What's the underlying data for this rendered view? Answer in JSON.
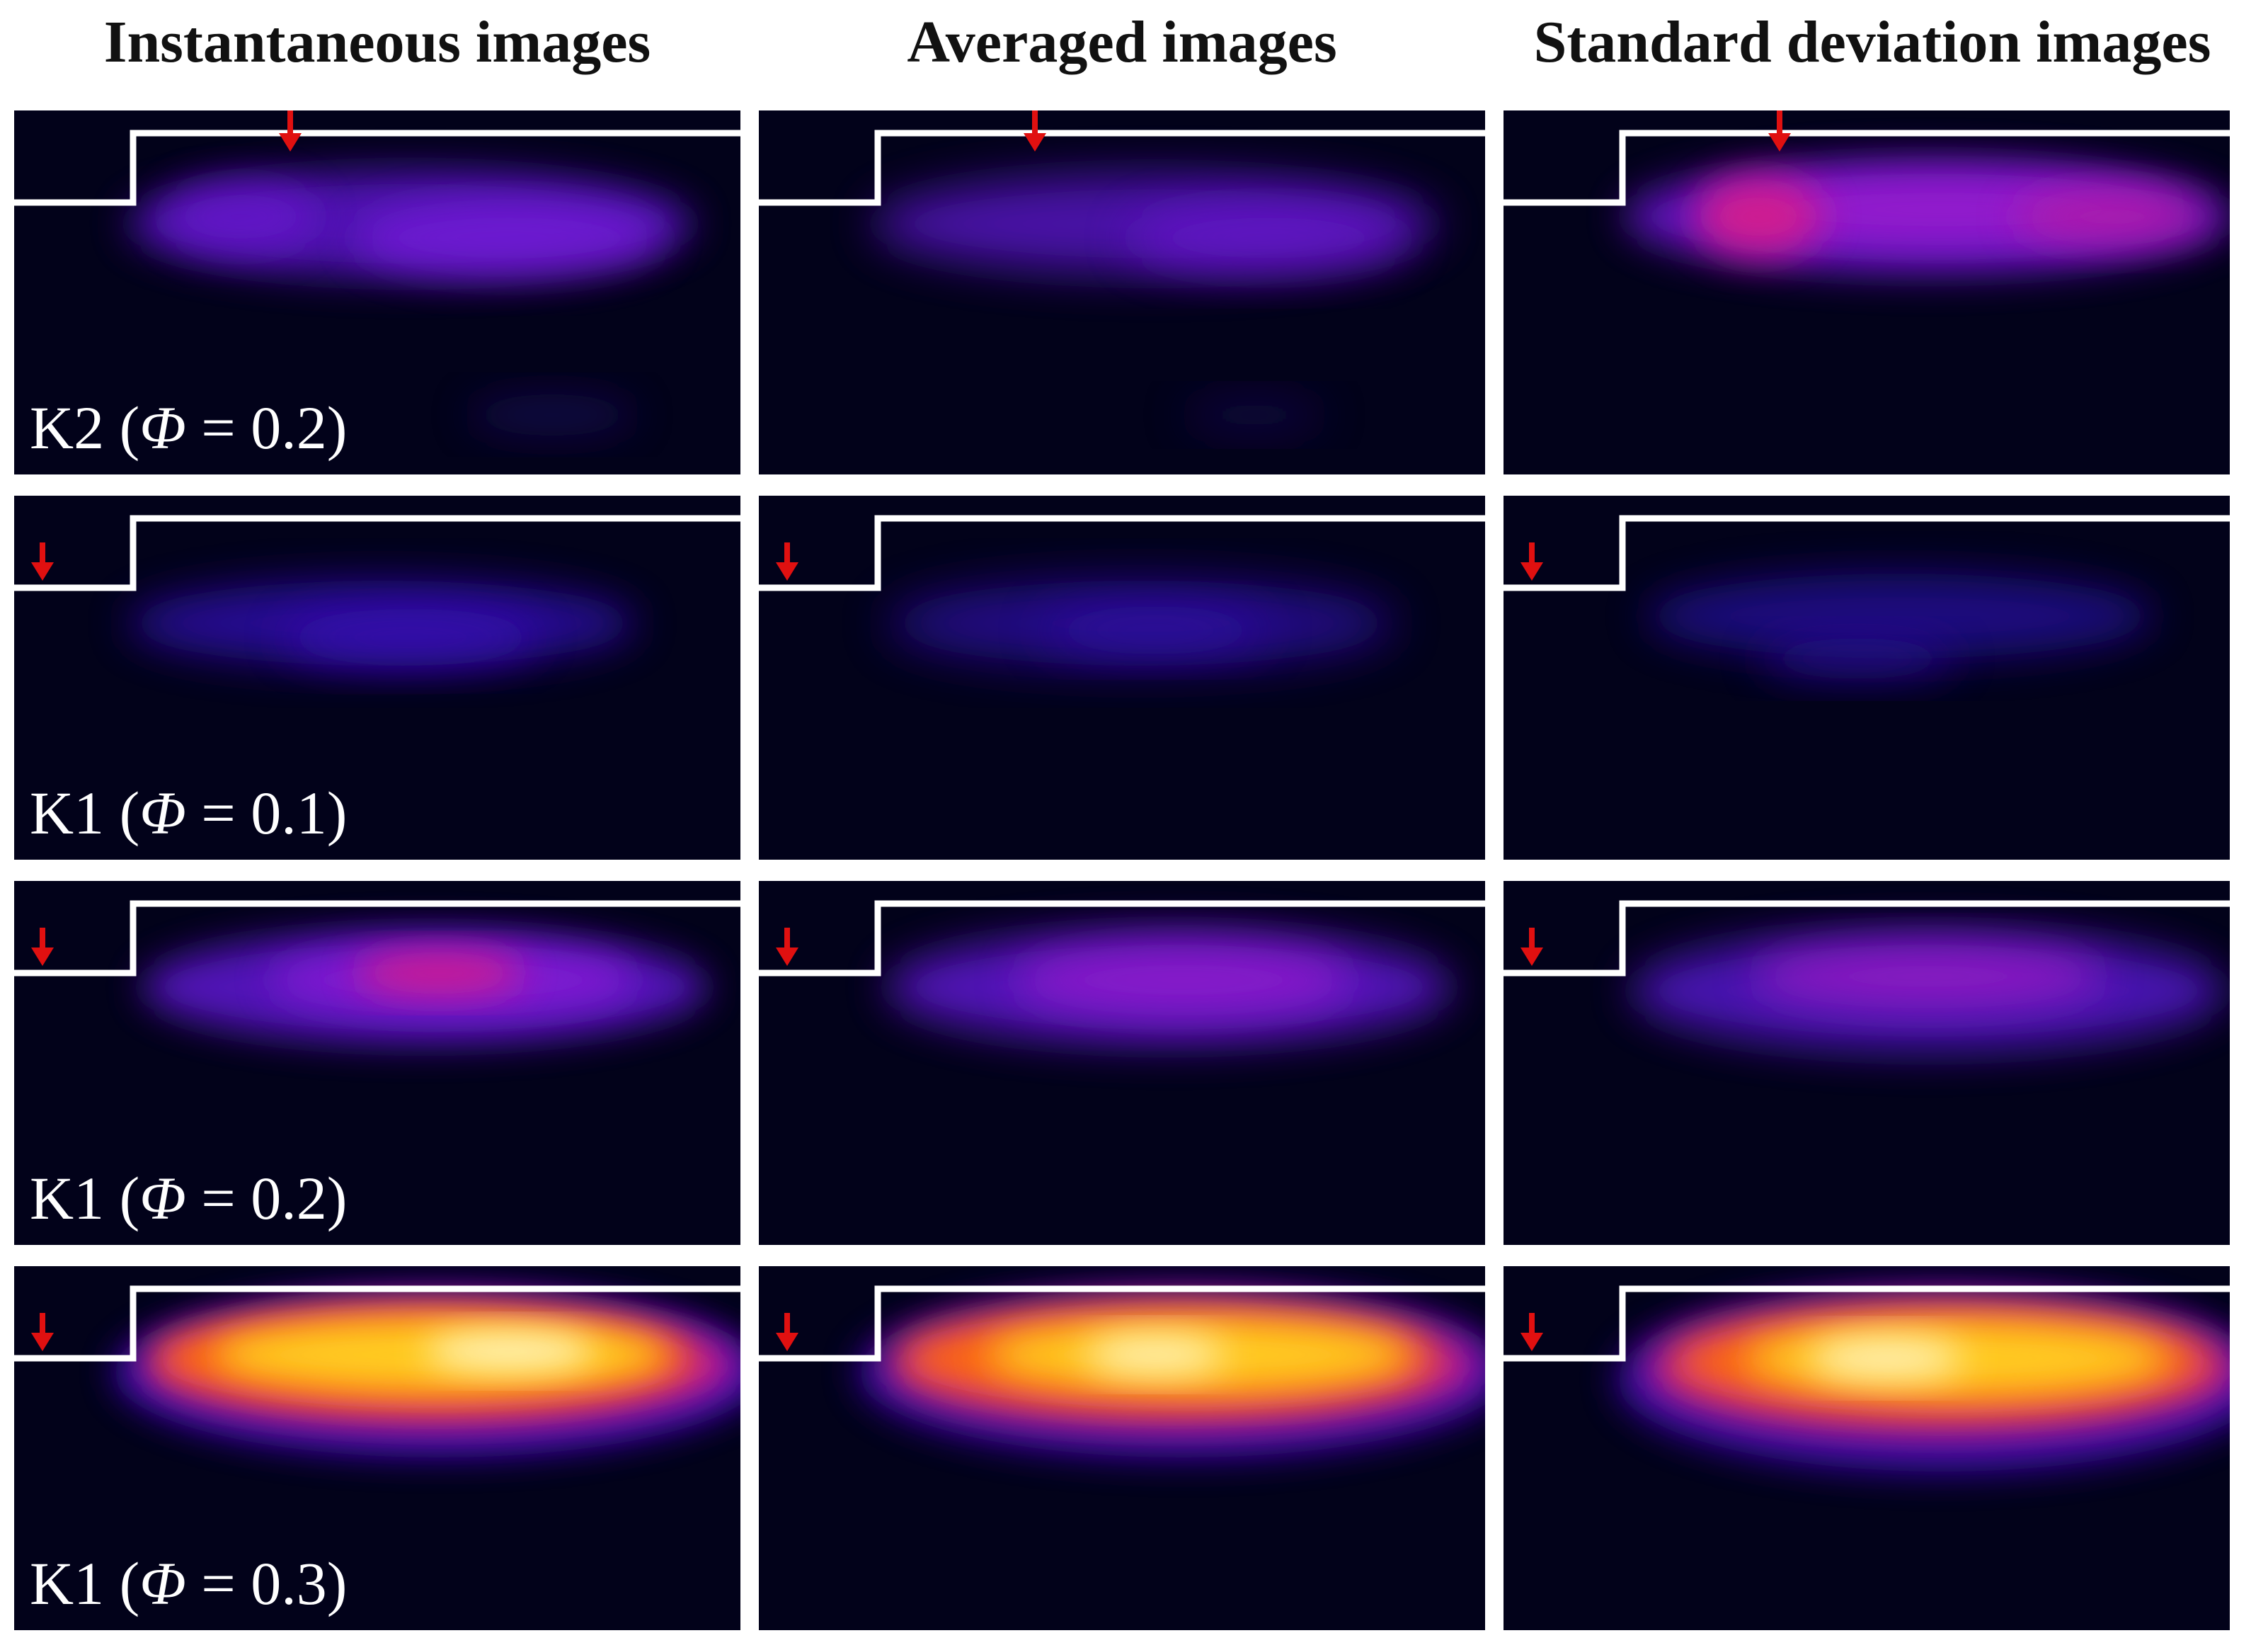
{
  "columns": [
    "Instantaneous images",
    "Averaged images",
    "Standard deviation images"
  ],
  "rows": [
    {
      "code": "K2",
      "symbol": "Φ",
      "value": "0.2",
      "label": "K2 (Φ = 0.2)",
      "arrow_position": "step-top"
    },
    {
      "code": "K1",
      "symbol": "Φ",
      "value": "0.1",
      "label": "K1 (Φ = 0.1)",
      "arrow_position": "inlet"
    },
    {
      "code": "K1",
      "symbol": "Φ",
      "value": "0.2",
      "label": "K1 (Φ = 0.2)",
      "arrow_position": "inlet"
    },
    {
      "code": "K1",
      "symbol": "Φ",
      "value": "0.3",
      "label": "K1 (Φ = 0.3)",
      "arrow_position": "inlet"
    }
  ],
  "colors": {
    "background": "#02021a",
    "outline": "#ffffff",
    "arrow": "#e01010",
    "colormap": [
      "#02021a",
      "#2a0a9a",
      "#7a1ee0",
      "#d81a8a",
      "#ff6a10",
      "#ffd020",
      "#ffffff"
    ]
  }
}
